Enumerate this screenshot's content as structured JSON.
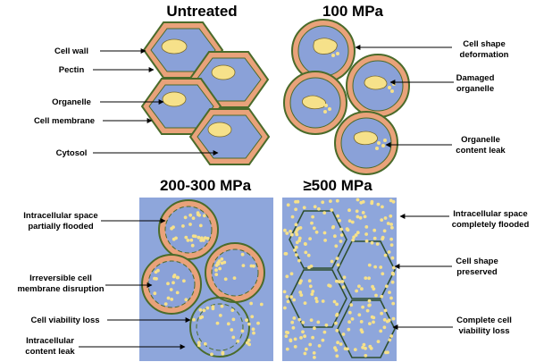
{
  "panels": {
    "untreated": {
      "title": "Untreated",
      "labels": {
        "cell_wall": "Cell wall",
        "pectin": "Pectin",
        "organelle": "Organelle",
        "cell_membrane": "Cell membrane",
        "cytosol": "Cytosol"
      }
    },
    "p100": {
      "title": "100 MPa",
      "labels": {
        "shape_def_1": "Cell shape",
        "shape_def_2": "deformation",
        "damaged_1": "Damaged",
        "damaged_2": "organelle",
        "leak_1": "Organelle",
        "leak_2": "content leak"
      }
    },
    "p200": {
      "title": "200-300 MPa",
      "labels": {
        "space_1": "Intracellular space",
        "space_2": "partially flooded",
        "disrupt_1": "Irreversible cell",
        "disrupt_2": "membrane disruption",
        "viability": "Cell viability loss",
        "content_1": "Intracellular",
        "content_2": "content leak"
      }
    },
    "p500": {
      "title": "≥500 MPa",
      "labels": {
        "flood_1": "Intracellular space",
        "flood_2": "completely flooded",
        "preserved_1": "Cell shape",
        "preserved_2": "preserved",
        "complete_1": "Complete cell",
        "complete_2": "viability loss"
      }
    }
  },
  "colors": {
    "cell_wall": "#4a6b2a",
    "pectin": "#e9a27a",
    "cytosol": "#8aa1d8",
    "organelle": "#f6e18a",
    "background_blue": "#8ea6db",
    "text": "#000000"
  }
}
